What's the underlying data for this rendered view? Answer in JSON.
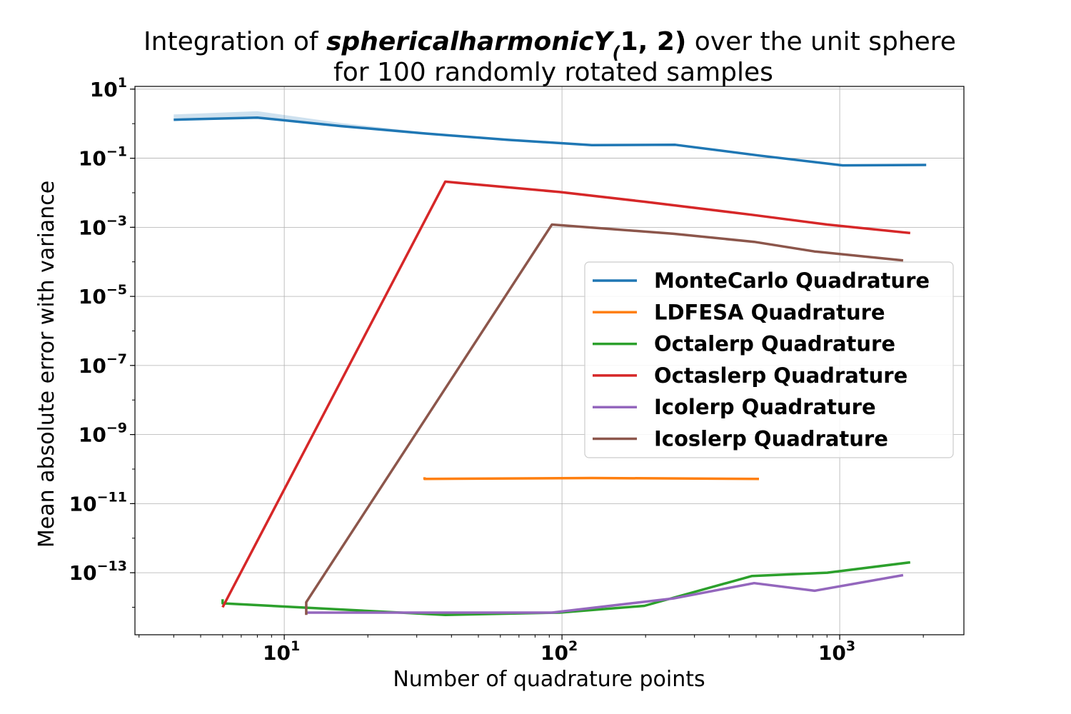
{
  "chart_data": {
    "type": "line",
    "title": {
      "prefix": "Integration of ",
      "func": "sphericalharmonicY",
      "sub": "(",
      "args": "1, 2)",
      "suffix": " over the unit sphere",
      "line2": "for 100 randomly rotated samples"
    },
    "xlabel": "Number of quadrature points",
    "ylabel": "Mean absolute error with variance",
    "xscale": "log",
    "yscale": "log",
    "xlim": [
      2.9,
      2800
    ],
    "ylim": [
      1.6e-15,
      12
    ],
    "grid": true,
    "legend_position": "center-right",
    "x_ticks": [
      {
        "value": 10,
        "base": "10",
        "exp": "1"
      },
      {
        "value": 100,
        "base": "10",
        "exp": "2"
      },
      {
        "value": 1000,
        "base": "10",
        "exp": "3"
      }
    ],
    "y_ticks": [
      {
        "value": 10,
        "base": "10",
        "exp": "1"
      },
      {
        "value": 0.1,
        "base": "10",
        "exp": "−1"
      },
      {
        "value": 0.001,
        "base": "10",
        "exp": "−3"
      },
      {
        "value": 1e-05,
        "base": "10",
        "exp": "−5"
      },
      {
        "value": 1e-07,
        "base": "10",
        "exp": "−7"
      },
      {
        "value": 1e-09,
        "base": "10",
        "exp": "−9"
      },
      {
        "value": 1e-11,
        "base": "10",
        "exp": "−11"
      },
      {
        "value": 1e-13,
        "base": "10",
        "exp": "−13"
      }
    ],
    "series": [
      {
        "name": "MonteCarlo Quadrature",
        "color": "#1f77b4",
        "x": [
          4,
          8,
          16,
          32,
          64,
          128,
          256,
          512,
          1024,
          2048
        ],
        "y": [
          1.3,
          1.5,
          0.85,
          0.52,
          0.34,
          0.24,
          0.245,
          0.12,
          0.062,
          0.064
        ],
        "band_upper": [
          1.85,
          2.3,
          1.05,
          0.56,
          0.34,
          0.24,
          0.245,
          0.12,
          0.062,
          0.064
        ]
      },
      {
        "name": "LDFESA Quadrature",
        "color": "#ff7f0e",
        "x": [
          32,
          32,
          128,
          512
        ],
        "y": [
          5.8e-11,
          5.2e-11,
          5.5e-11,
          5.2e-11
        ]
      },
      {
        "name": "Octalerp Quadrature",
        "color": "#2ca02c",
        "x": [
          6,
          6,
          38,
          98,
          198,
          482,
          902,
          1794
        ],
        "y": [
          1.7e-14,
          1.3e-14,
          6e-15,
          7e-15,
          1.1e-14,
          8e-14,
          1e-13,
          2e-13
        ]
      },
      {
        "name": "Octaslerp Quadrature",
        "color": "#d62728",
        "x": [
          6,
          38,
          98,
          198,
          482,
          902,
          1794
        ],
        "y": [
          1e-14,
          0.021,
          0.0105,
          0.0055,
          0.0023,
          0.0012,
          0.00068
        ]
      },
      {
        "name": "Icolerp Quadrature",
        "color": "#9467bd",
        "x": [
          12,
          42,
          92,
          252,
          492,
          812,
          1692
        ],
        "y": [
          7e-15,
          7e-15,
          7e-15,
          1.8e-14,
          5e-14,
          3e-14,
          8.5e-14
        ]
      },
      {
        "name": "Icoslerp Quadrature",
        "color": "#8c564b",
        "x": [
          12,
          12,
          92,
          252,
          492,
          812,
          1692
        ],
        "y": [
          6e-15,
          1.4e-14,
          0.0012,
          0.00065,
          0.00038,
          0.0002,
          0.00011
        ]
      }
    ]
  }
}
